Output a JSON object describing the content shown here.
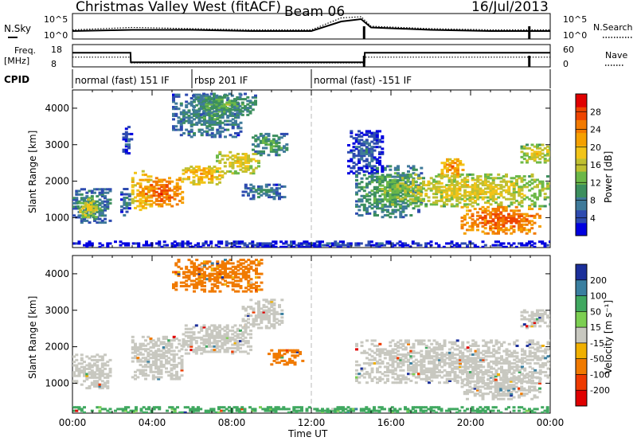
{
  "header": {
    "station": "Christmas Valley West (fitACF)",
    "beam": "Beam 06",
    "date": "16/Jul/2013"
  },
  "parameter_panels": {
    "nsky_label": "N.Sky",
    "nsearch_label": "N.Search",
    "noise_ticks": [
      "10^5",
      "10^0"
    ],
    "freq_label": "Freq.",
    "freq_unit": "[MHz]",
    "freq_ticks": [
      "18",
      "8"
    ],
    "nave_label": "Nave",
    "nave_ticks": [
      "60",
      "0"
    ],
    "cpid_label": "CPID"
  },
  "cpid_segments": [
    {
      "label": "normal (fast) 151 IF",
      "start": "00:00",
      "end": "06:00"
    },
    {
      "label": "rbsp 201 IF",
      "start": "06:00",
      "end": "12:00"
    },
    {
      "label": "normal (fast) -151 IF",
      "start": "12:00",
      "end": "24:00"
    }
  ],
  "axes": {
    "x_ticks": [
      "00:00",
      "04:00",
      "08:00",
      "12:00",
      "16:00",
      "20:00",
      "00:00"
    ],
    "xlabel": "Time UT",
    "ylabel": "Slant Range [km]",
    "y_ticks": [
      "1000",
      "2000",
      "3000",
      "4000"
    ]
  },
  "colorbars": {
    "power": {
      "label": "Power [dB]",
      "ticks": [
        "4",
        "8",
        "12",
        "16",
        "20",
        "24",
        "28"
      ],
      "colors": [
        "#0000e0",
        "#2e4bb0",
        "#3f7a9a",
        "#3c8f5e",
        "#6cb848",
        "#c0c030",
        "#f2c418",
        "#f5a000",
        "#f27a00",
        "#ee4400",
        "#e00000"
      ]
    },
    "velocity": {
      "label": "Velocity [m s⁻¹]",
      "ticks": [
        "200",
        "100",
        "50",
        "15",
        "-15",
        "-50",
        "-100",
        "-200"
      ],
      "colors": [
        "#1b2f9a",
        "#3a7fa0",
        "#40a860",
        "#7ccf52",
        "#c8c8c0",
        "#f0b000",
        "#f07a00",
        "#ee3a00",
        "#e00000"
      ]
    }
  },
  "chart_data": [
    {
      "type": "line",
      "title": "N.Sky / N.Search",
      "x": [
        "00:00",
        "03:00",
        "06:00",
        "09:00",
        "12:00",
        "13:30",
        "14:30",
        "15:00",
        "18:00",
        "21:00",
        "24:00"
      ],
      "ylim": [
        "10^0",
        "10^5"
      ],
      "series": [
        {
          "name": "N.Sky",
          "values": [
            0.3,
            0.35,
            0.35,
            0.3,
            0.3,
            0.7,
            0.8,
            0.45,
            0.35,
            0.3,
            0.3
          ]
        },
        {
          "name": "N.Search",
          "values": [
            0.35,
            0.45,
            0.4,
            0.35,
            0.35,
            0.85,
            0.9,
            0.5,
            0.4,
            0.35,
            0.35
          ]
        }
      ]
    },
    {
      "type": "line",
      "title": "Freq. / Nave",
      "x": [
        "00:00",
        "02:55",
        "02:56",
        "14:40",
        "14:41",
        "24:00"
      ],
      "series": [
        {
          "name": "Freq. [MHz]",
          "values": [
            15,
            15,
            10,
            10,
            15,
            15
          ]
        },
        {
          "name": "Nave",
          "values": [
            28,
            28,
            10,
            10,
            28,
            28
          ]
        }
      ]
    },
    {
      "type": "heatmap",
      "title": "Power [dB]",
      "xlabel": "Time UT",
      "ylabel": "Slant Range [km]",
      "xlim": [
        0,
        24
      ],
      "ylim": [
        180,
        4500
      ],
      "clim": [
        0,
        30
      ],
      "regions": [
        {
          "t0": 0.0,
          "t1": 1.9,
          "r0": 850,
          "r1": 1800,
          "level": 10
        },
        {
          "t0": 0.2,
          "t1": 1.2,
          "r0": 1000,
          "r1": 1500,
          "level": 18
        },
        {
          "t0": 2.4,
          "t1": 2.85,
          "r0": 1000,
          "r1": 1800,
          "level": 8
        },
        {
          "t0": 2.5,
          "t1": 2.9,
          "r0": 2700,
          "r1": 3500,
          "level": 6
        },
        {
          "t0": 2.95,
          "t1": 3.9,
          "r0": 1200,
          "r1": 2300,
          "level": 22
        },
        {
          "t0": 3.5,
          "t1": 5.5,
          "r0": 1300,
          "r1": 2100,
          "level": 27
        },
        {
          "t0": 5.5,
          "t1": 7.5,
          "r0": 1900,
          "r1": 2400,
          "level": 22
        },
        {
          "t0": 7.2,
          "t1": 9.3,
          "r0": 2200,
          "r1": 2800,
          "level": 19
        },
        {
          "t0": 9.0,
          "t1": 10.7,
          "r0": 2700,
          "r1": 3300,
          "level": 12
        },
        {
          "t0": 5.0,
          "t1": 8.5,
          "r0": 3200,
          "r1": 4400,
          "level": 10
        },
        {
          "t0": 6.0,
          "t1": 9.2,
          "r0": 3800,
          "r1": 4400,
          "level": 12
        },
        {
          "t0": 8.5,
          "t1": 10.7,
          "r0": 1500,
          "r1": 1900,
          "level": 9
        },
        {
          "t0": 14.2,
          "t1": 17.5,
          "r0": 1000,
          "r1": 2400,
          "level": 12
        },
        {
          "t0": 16.0,
          "t1": 24.0,
          "r0": 1300,
          "r1": 2200,
          "level": 18
        },
        {
          "t0": 18.5,
          "t1": 19.6,
          "r0": 2100,
          "r1": 2600,
          "level": 24
        },
        {
          "t0": 19.5,
          "t1": 23.5,
          "r0": 550,
          "r1": 1300,
          "level": 27
        },
        {
          "t0": 22.5,
          "t1": 24.0,
          "r0": 2500,
          "r1": 3000,
          "level": 18
        },
        {
          "t0": 13.8,
          "t1": 15.5,
          "r0": 2200,
          "r1": 3400,
          "level": 6
        },
        {
          "t0": 0.0,
          "t1": 24.0,
          "r0": 180,
          "r1": 330,
          "level": 4
        }
      ]
    },
    {
      "type": "heatmap",
      "title": "Velocity [m s⁻¹]",
      "xlabel": "Time UT",
      "ylabel": "Slant Range [km]",
      "xlim": [
        0,
        24
      ],
      "ylim": [
        180,
        4500
      ],
      "clim": [
        -200,
        200
      ],
      "regions": [
        {
          "t0": 0.0,
          "t1": 1.9,
          "r0": 850,
          "r1": 1800,
          "value": 0
        },
        {
          "t0": 2.95,
          "t1": 5.5,
          "r0": 1100,
          "r1": 2300,
          "value": 0
        },
        {
          "t0": 5.5,
          "t1": 9.0,
          "r0": 1800,
          "r1": 2600,
          "value": 0
        },
        {
          "t0": 8.5,
          "t1": 10.6,
          "r0": 2500,
          "r1": 3300,
          "value": 0
        },
        {
          "t0": 9.8,
          "t1": 11.5,
          "r0": 1500,
          "r1": 1900,
          "value": -60
        },
        {
          "t0": 5.0,
          "t1": 9.5,
          "r0": 3500,
          "r1": 4400,
          "value": -40
        },
        {
          "t0": 14.2,
          "t1": 24.0,
          "r0": 1000,
          "r1": 2200,
          "value": 0
        },
        {
          "t0": 19.5,
          "t1": 23.5,
          "r0": 550,
          "r1": 1300,
          "value": 0
        },
        {
          "t0": 22.5,
          "t1": 24.0,
          "r0": 2500,
          "r1": 3000,
          "value": 0
        },
        {
          "t0": 0.0,
          "t1": 24.0,
          "r0": 180,
          "r1": 330,
          "value": 40
        }
      ]
    }
  ]
}
